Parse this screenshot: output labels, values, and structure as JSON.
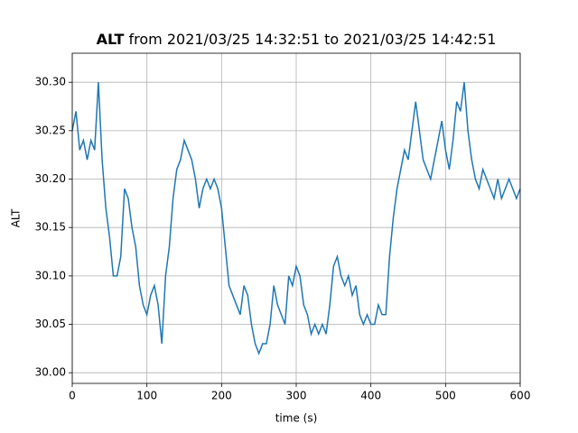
{
  "chart_data": {
    "type": "line",
    "title": {
      "bold": "ALT",
      "rest": "from 2021/03/25 14:32:51 to 2021/03/25 14:42:51"
    },
    "xlabel": "time (s)",
    "ylabel": "ALT",
    "x": [
      0,
      5,
      10,
      15,
      20,
      25,
      30,
      35,
      40,
      45,
      50,
      55,
      60,
      65,
      70,
      75,
      80,
      85,
      90,
      95,
      100,
      105,
      110,
      115,
      120,
      125,
      130,
      135,
      140,
      145,
      150,
      155,
      160,
      165,
      170,
      175,
      180,
      185,
      190,
      195,
      200,
      205,
      210,
      215,
      220,
      225,
      230,
      235,
      240,
      245,
      250,
      255,
      260,
      265,
      270,
      275,
      280,
      285,
      290,
      295,
      300,
      305,
      310,
      315,
      320,
      325,
      330,
      335,
      340,
      345,
      350,
      355,
      360,
      365,
      370,
      375,
      380,
      385,
      390,
      395,
      400,
      405,
      410,
      415,
      420,
      425,
      430,
      435,
      440,
      445,
      450,
      455,
      460,
      465,
      470,
      475,
      480,
      485,
      490,
      495,
      500,
      505,
      510,
      515,
      520,
      525,
      530,
      535,
      540,
      545,
      550,
      555,
      560,
      565,
      570,
      575,
      580,
      585,
      590,
      595,
      600
    ],
    "series": [
      {
        "name": "ALT",
        "color": "#1f77b4",
        "values": [
          30.25,
          30.27,
          30.23,
          30.24,
          30.22,
          30.24,
          30.23,
          30.3,
          30.22,
          30.17,
          30.14,
          30.1,
          30.1,
          30.12,
          30.19,
          30.18,
          30.15,
          30.13,
          30.09,
          30.07,
          30.06,
          30.08,
          30.09,
          30.07,
          30.03,
          30.1,
          30.13,
          30.18,
          30.21,
          30.22,
          30.24,
          30.23,
          30.22,
          30.2,
          30.17,
          30.19,
          30.2,
          30.19,
          30.2,
          30.19,
          30.17,
          30.13,
          30.09,
          30.08,
          30.07,
          30.06,
          30.09,
          30.08,
          30.05,
          30.03,
          30.02,
          30.03,
          30.03,
          30.05,
          30.09,
          30.07,
          30.06,
          30.05,
          30.1,
          30.09,
          30.11,
          30.1,
          30.07,
          30.06,
          30.04,
          30.05,
          30.04,
          30.05,
          30.04,
          30.07,
          30.11,
          30.12,
          30.1,
          30.09,
          30.1,
          30.08,
          30.09,
          30.06,
          30.05,
          30.06,
          30.05,
          30.05,
          30.07,
          30.06,
          30.06,
          30.12,
          30.16,
          30.19,
          30.21,
          30.23,
          30.22,
          30.25,
          30.28,
          30.25,
          30.22,
          30.21,
          30.2,
          30.22,
          30.24,
          30.26,
          30.23,
          30.21,
          30.24,
          30.28,
          30.27,
          30.3,
          30.25,
          30.22,
          30.2,
          30.19,
          30.21,
          30.2,
          30.19,
          30.18,
          30.2,
          30.18,
          30.19,
          30.2,
          30.19,
          30.18,
          30.19
        ]
      }
    ],
    "xlim": [
      0,
      600
    ],
    "xticks": [
      0,
      100,
      200,
      300,
      400,
      500,
      600
    ],
    "ylim": [
      29.989,
      30.33
    ],
    "yticks": [
      {
        "value": 30,
        "label": "30.00"
      },
      30.05,
      {
        "value": 30.1,
        "label": "30.10"
      },
      30.15,
      {
        "value": 30.2,
        "label": "30.20"
      },
      30.25,
      {
        "value": 30.3,
        "label": "30.30"
      }
    ],
    "grid": true
  }
}
